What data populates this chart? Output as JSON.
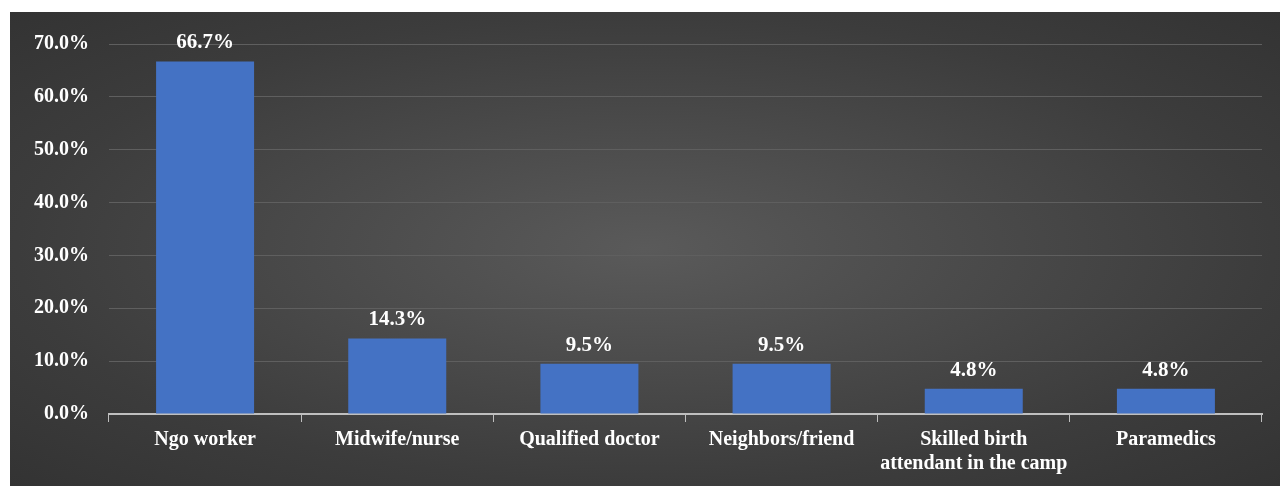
{
  "chart_data": {
    "type": "bar",
    "categories": [
      "Ngo worker",
      "Midwife/nurse",
      "Qualified doctor",
      "Neighbors/friend",
      "Skilled birth attendant in the camp",
      "Paramedics"
    ],
    "values": [
      66.7,
      14.3,
      9.5,
      9.5,
      4.8,
      4.8
    ],
    "value_labels": [
      "66.7%",
      "14.3%",
      "9.5%",
      "9.5%",
      "4.8%",
      "4.8%"
    ],
    "color": "#4472c4",
    "ylim": [
      0,
      70
    ],
    "yticks": [
      {
        "value": 0,
        "label": "0.0%"
      },
      {
        "value": 10,
        "label": "10.0%"
      },
      {
        "value": 20,
        "label": "20.0%"
      },
      {
        "value": 30,
        "label": "30.0%"
      },
      {
        "value": 40,
        "label": "40.0%"
      },
      {
        "value": 50,
        "label": "50.0%"
      },
      {
        "value": 60,
        "label": "60.0%"
      },
      {
        "value": 70,
        "label": "70.0%"
      }
    ],
    "grid": "y",
    "legend": false
  }
}
